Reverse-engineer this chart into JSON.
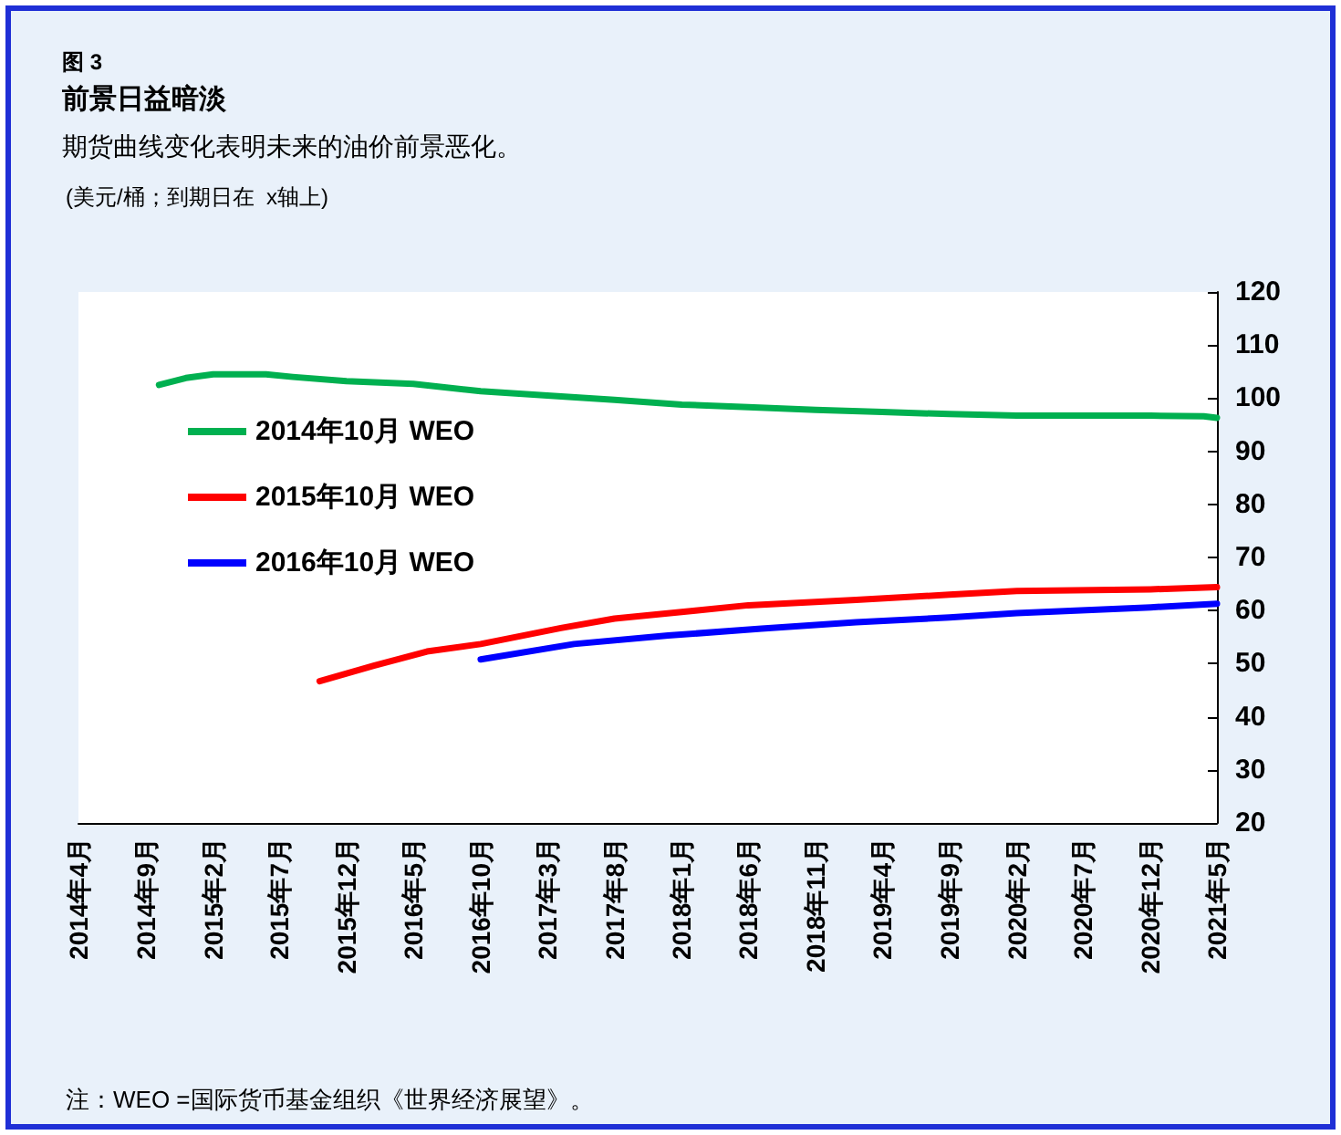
{
  "chart_data": {
    "type": "line",
    "title": "前景日益暗淡",
    "subtitle": "期货曲线变化表明未来的油价前景恶化。",
    "annotations": [
      "图 3",
      "(美元/桶；到期日在  x轴上)",
      "注：WEO =国际货币基金组织《世界经济展望》。"
    ],
    "xlim": [
      "2014-04",
      "2021-05"
    ],
    "xticks": [
      {
        "value": "2014-04",
        "label": "2014年4月"
      },
      {
        "value": "2014-09",
        "label": "2014年9月"
      },
      {
        "value": "2015-02",
        "label": "2015年2月"
      },
      {
        "value": "2015-07",
        "label": "2015年7月"
      },
      {
        "value": "2015-12",
        "label": "2015年12月"
      },
      {
        "value": "2016-05",
        "label": "2016年5月"
      },
      {
        "value": "2016-10",
        "label": "2016年10月"
      },
      {
        "value": "2017-03",
        "label": "2017年3月"
      },
      {
        "value": "2017-08",
        "label": "2017年8月"
      },
      {
        "value": "2018-01",
        "label": "2018年1月"
      },
      {
        "value": "2018-06",
        "label": "2018年6月"
      },
      {
        "value": "2018-11",
        "label": "2018年11月"
      },
      {
        "value": "2019-04",
        "label": "2019年4月"
      },
      {
        "value": "2019-09",
        "label": "2019年9月"
      },
      {
        "value": "2020-02",
        "label": "2020年2月"
      },
      {
        "value": "2020-07",
        "label": "2020年7月"
      },
      {
        "value": "2020-12",
        "label": "2020年12月"
      },
      {
        "value": "2021-05",
        "label": "2021年5月"
      }
    ],
    "ylim": [
      20,
      120
    ],
    "yticks": [
      20,
      30,
      40,
      50,
      60,
      70,
      80,
      90,
      100,
      110,
      120
    ],
    "grid": false,
    "legend": "top left",
    "marker": "none",
    "line_style": "solid",
    "series": [
      {
        "name": "2014年10月 WEO",
        "color": "#00b050",
        "x": [
          "2014-10",
          "2014-12",
          "2015-02",
          "2015-06",
          "2015-08",
          "2015-12",
          "2016-05",
          "2016-10",
          "2017-03",
          "2017-08",
          "2018-01",
          "2018-06",
          "2018-11",
          "2019-04",
          "2019-09",
          "2020-02",
          "2020-07",
          "2020-12",
          "2021-04",
          "2021-05"
        ],
        "values": [
          102.5,
          103.8,
          104.5,
          104.5,
          104.0,
          103.2,
          102.7,
          101.3,
          100.5,
          99.7,
          98.8,
          98.3,
          97.8,
          97.4,
          97.0,
          96.7,
          96.7,
          96.7,
          96.6,
          96.3
        ]
      },
      {
        "name": "2015年10月 WEO",
        "color": "#ff0000",
        "x": [
          "2015-10",
          "2016-02",
          "2016-06",
          "2016-10",
          "2017-04",
          "2017-08",
          "2018-02",
          "2018-06",
          "2019-02",
          "2019-09",
          "2020-02",
          "2020-12",
          "2021-05"
        ],
        "values": [
          46.7,
          49.6,
          52.3,
          53.7,
          56.7,
          58.5,
          60.0,
          61.0,
          62.0,
          63.0,
          63.7,
          64.0,
          64.4
        ]
      },
      {
        "name": "2016年10月 WEO",
        "color": "#0000ff",
        "x": [
          "2016-10",
          "2017-05",
          "2017-12",
          "2018-07",
          "2019-02",
          "2019-09",
          "2020-02",
          "2020-12",
          "2021-05"
        ],
        "values": [
          50.8,
          53.7,
          55.3,
          56.6,
          57.8,
          58.7,
          59.5,
          60.6,
          61.3
        ]
      }
    ]
  }
}
